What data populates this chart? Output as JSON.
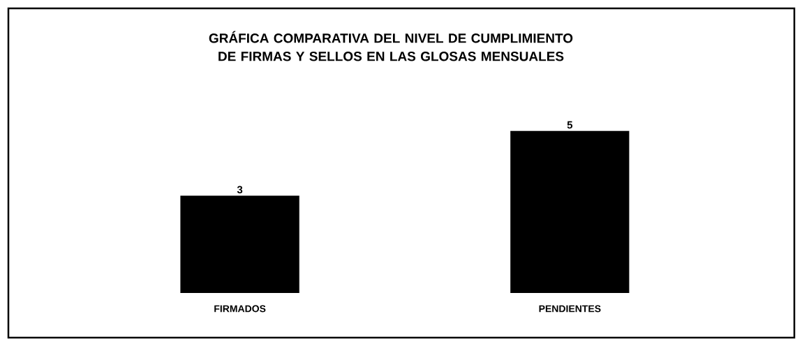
{
  "chart_data": {
    "type": "bar",
    "title": "GRÁFICA COMPARATIVA DEL NIVEL DE CUMPLIMIENTO DE FIRMAS Y SELLOS EN LAS GLOSAS MENSUALES",
    "categories": [
      "FIRMADOS",
      "PENDIENTES"
    ],
    "values": [
      3,
      5
    ],
    "color": "#000000",
    "data_labels": true
  }
}
